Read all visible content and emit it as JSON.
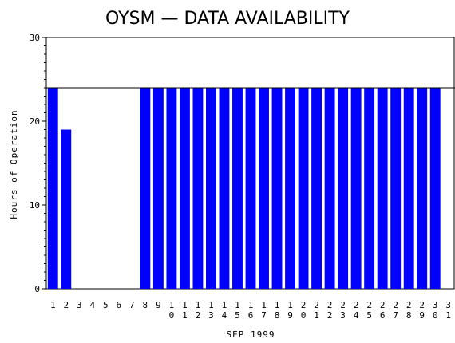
{
  "chart_data": {
    "type": "bar",
    "title": "OYSM — DATA AVAILABILITY",
    "xlabel": "SEP 1999",
    "ylabel": "Hours of Operation",
    "ylim": [
      0,
      30
    ],
    "yticks": [
      "0",
      "10",
      "20",
      "30"
    ],
    "reference_line": 24,
    "bar_color": "#0000ff",
    "categories": [
      "1",
      "2",
      "3",
      "4",
      "5",
      "6",
      "7",
      "8",
      "9",
      "10",
      "11",
      "12",
      "13",
      "14",
      "15",
      "16",
      "17",
      "18",
      "19",
      "20",
      "21",
      "22",
      "23",
      "24",
      "25",
      "26",
      "27",
      "28",
      "29",
      "30",
      "31"
    ],
    "values": [
      24,
      19,
      0,
      0,
      0,
      0,
      0,
      24,
      24,
      24,
      24,
      24,
      24,
      24,
      24,
      24,
      24,
      24,
      24,
      24,
      24,
      24,
      24,
      24,
      24,
      24,
      24,
      24,
      24,
      24,
      0
    ]
  }
}
